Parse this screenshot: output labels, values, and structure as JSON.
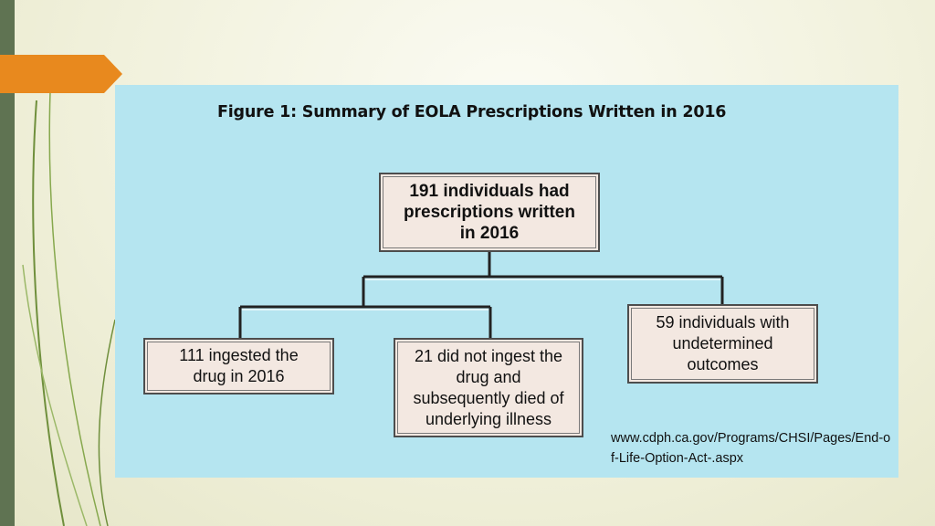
{
  "figure": {
    "title": "Figure 1: Summary of EOLA Prescriptions Written in 2016",
    "top_box": {
      "lines": [
        "191 individuals had",
        "prescriptions written",
        "in 2016"
      ]
    },
    "box_ingested": {
      "lines": [
        "111 ingested the",
        "drug in 2016"
      ]
    },
    "box_not_ingested": {
      "lines": [
        "21 did not ingest the",
        "drug and",
        "subsequently died of",
        "underlying illness"
      ]
    },
    "box_undetermined": {
      "lines": [
        "59 individuals with",
        "undetermined",
        "outcomes"
      ]
    }
  },
  "source_url": "www.cdph.ca.gov/Programs/CHSI/Pages/End-of-Life-Option-Act-.aspx",
  "colors": {
    "panel": "#b5e5f0",
    "box_fill": "#f3e8e1",
    "accent_orange": "#e8891e",
    "left_bar": "#5f7352"
  }
}
